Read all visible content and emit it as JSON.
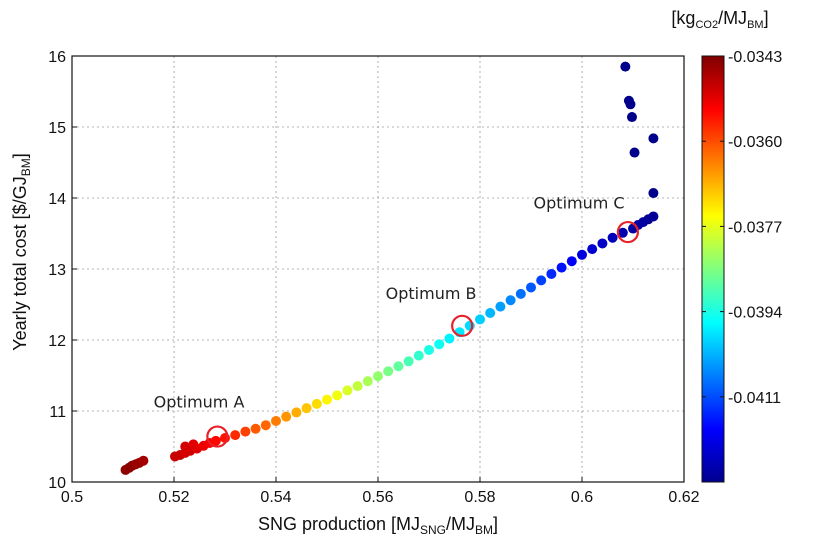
{
  "chart_data": {
    "type": "scatter",
    "xlabel": {
      "main": "SNG production [MJ",
      "sub1": "SNG",
      "mid": "/MJ",
      "sub2": "BM",
      "end": "]"
    },
    "ylabel": {
      "main": "Yearly total cost  [$/GJ",
      "sub": "BM",
      "end": "]"
    },
    "colorbar_label": {
      "pre": "[kg",
      "sub1": "CO2",
      "mid": "/MJ",
      "sub2": "BM",
      "end": "]"
    },
    "xlim": [
      0.5,
      0.62
    ],
    "ylim": [
      10,
      16
    ],
    "xticks": [
      "0.5",
      "0.52",
      "0.54",
      "0.56",
      "0.58",
      "0.6",
      "0.62"
    ],
    "yticks": [
      "10",
      "11",
      "12",
      "13",
      "14",
      "15",
      "16"
    ],
    "grid": true,
    "colormap": "jet",
    "color_range": [
      -0.0428,
      -0.0343
    ],
    "colorbar_ticks": [
      "-0.0343",
      "-0.0360",
      "-0.0377",
      "-0.0394",
      "-0.0411"
    ],
    "colorbar_tick_values": [
      -0.0343,
      -0.036,
      -0.0377,
      -0.0394,
      -0.0411
    ],
    "points": [
      [
        0.5105,
        10.17,
        -0.0344
      ],
      [
        0.5112,
        10.2,
        -0.0344
      ],
      [
        0.5118,
        10.23,
        -0.0344
      ],
      [
        0.5125,
        10.25,
        -0.0345
      ],
      [
        0.5132,
        10.27,
        -0.0345
      ],
      [
        0.514,
        10.3,
        -0.0346
      ],
      [
        0.5202,
        10.36,
        -0.0349
      ],
      [
        0.5212,
        10.38,
        -0.0349
      ],
      [
        0.5222,
        10.41,
        -0.035
      ],
      [
        0.5222,
        10.5,
        -0.035
      ],
      [
        0.5232,
        10.44,
        -0.035
      ],
      [
        0.5238,
        10.53,
        -0.0351
      ],
      [
        0.5245,
        10.47,
        -0.0351
      ],
      [
        0.5258,
        10.51,
        -0.0352
      ],
      [
        0.527,
        10.55,
        -0.0353
      ],
      [
        0.5282,
        10.58,
        -0.0354
      ],
      [
        0.53,
        10.62,
        -0.0355
      ],
      [
        0.532,
        10.66,
        -0.0357
      ],
      [
        0.534,
        10.71,
        -0.0359
      ],
      [
        0.536,
        10.75,
        -0.0361
      ],
      [
        0.538,
        10.8,
        -0.0362
      ],
      [
        0.54,
        10.86,
        -0.0364
      ],
      [
        0.542,
        10.92,
        -0.0366
      ],
      [
        0.544,
        10.98,
        -0.0368
      ],
      [
        0.546,
        11.04,
        -0.037
      ],
      [
        0.548,
        11.1,
        -0.0372
      ],
      [
        0.55,
        11.16,
        -0.0374
      ],
      [
        0.552,
        11.22,
        -0.0376
      ],
      [
        0.554,
        11.29,
        -0.0378
      ],
      [
        0.556,
        11.35,
        -0.038
      ],
      [
        0.558,
        11.42,
        -0.0382
      ],
      [
        0.56,
        11.49,
        -0.0384
      ],
      [
        0.562,
        11.56,
        -0.0386
      ],
      [
        0.564,
        11.63,
        -0.0388
      ],
      [
        0.566,
        11.7,
        -0.039
      ],
      [
        0.568,
        11.78,
        -0.0392
      ],
      [
        0.57,
        11.86,
        -0.0394
      ],
      [
        0.572,
        11.94,
        -0.0395
      ],
      [
        0.574,
        12.02,
        -0.0397
      ],
      [
        0.576,
        12.11,
        -0.0398
      ],
      [
        0.578,
        12.2,
        -0.0399
      ],
      [
        0.58,
        12.29,
        -0.04
      ],
      [
        0.582,
        12.38,
        -0.0402
      ],
      [
        0.584,
        12.47,
        -0.0404
      ],
      [
        0.586,
        12.56,
        -0.0406
      ],
      [
        0.588,
        12.65,
        -0.0408
      ],
      [
        0.59,
        12.74,
        -0.041
      ],
      [
        0.592,
        12.84,
        -0.0412
      ],
      [
        0.594,
        12.93,
        -0.0414
      ],
      [
        0.596,
        13.02,
        -0.0416
      ],
      [
        0.598,
        13.11,
        -0.0418
      ],
      [
        0.6,
        13.2,
        -0.042
      ],
      [
        0.602,
        13.28,
        -0.0421
      ],
      [
        0.604,
        13.36,
        -0.0422
      ],
      [
        0.606,
        13.44,
        -0.0423
      ],
      [
        0.608,
        13.51,
        -0.0424
      ],
      [
        0.61,
        13.57,
        -0.0425
      ],
      [
        0.611,
        13.62,
        -0.0425
      ],
      [
        0.612,
        13.66,
        -0.0425
      ],
      [
        0.613,
        13.7,
        -0.0426
      ],
      [
        0.614,
        13.74,
        -0.0426
      ],
      [
        0.6085,
        15.85,
        -0.0427
      ],
      [
        0.6092,
        15.37,
        -0.0427
      ],
      [
        0.6095,
        15.32,
        -0.0427
      ],
      [
        0.6098,
        15.14,
        -0.0427
      ],
      [
        0.6103,
        14.64,
        -0.0427
      ],
      [
        0.614,
        14.84,
        -0.0427
      ],
      [
        0.614,
        14.07,
        -0.0427
      ]
    ],
    "annotations": [
      {
        "text": "Optimum A",
        "x": 0.5285,
        "y": 10.64,
        "tx": 0.516,
        "ty": 11.05
      },
      {
        "text": "Optimum B",
        "x": 0.5765,
        "y": 12.2,
        "tx": 0.5615,
        "ty": 12.58
      },
      {
        "text": "Optimum C",
        "x": 0.609,
        "y": 13.52,
        "tx": 0.5905,
        "ty": 13.85
      }
    ]
  }
}
